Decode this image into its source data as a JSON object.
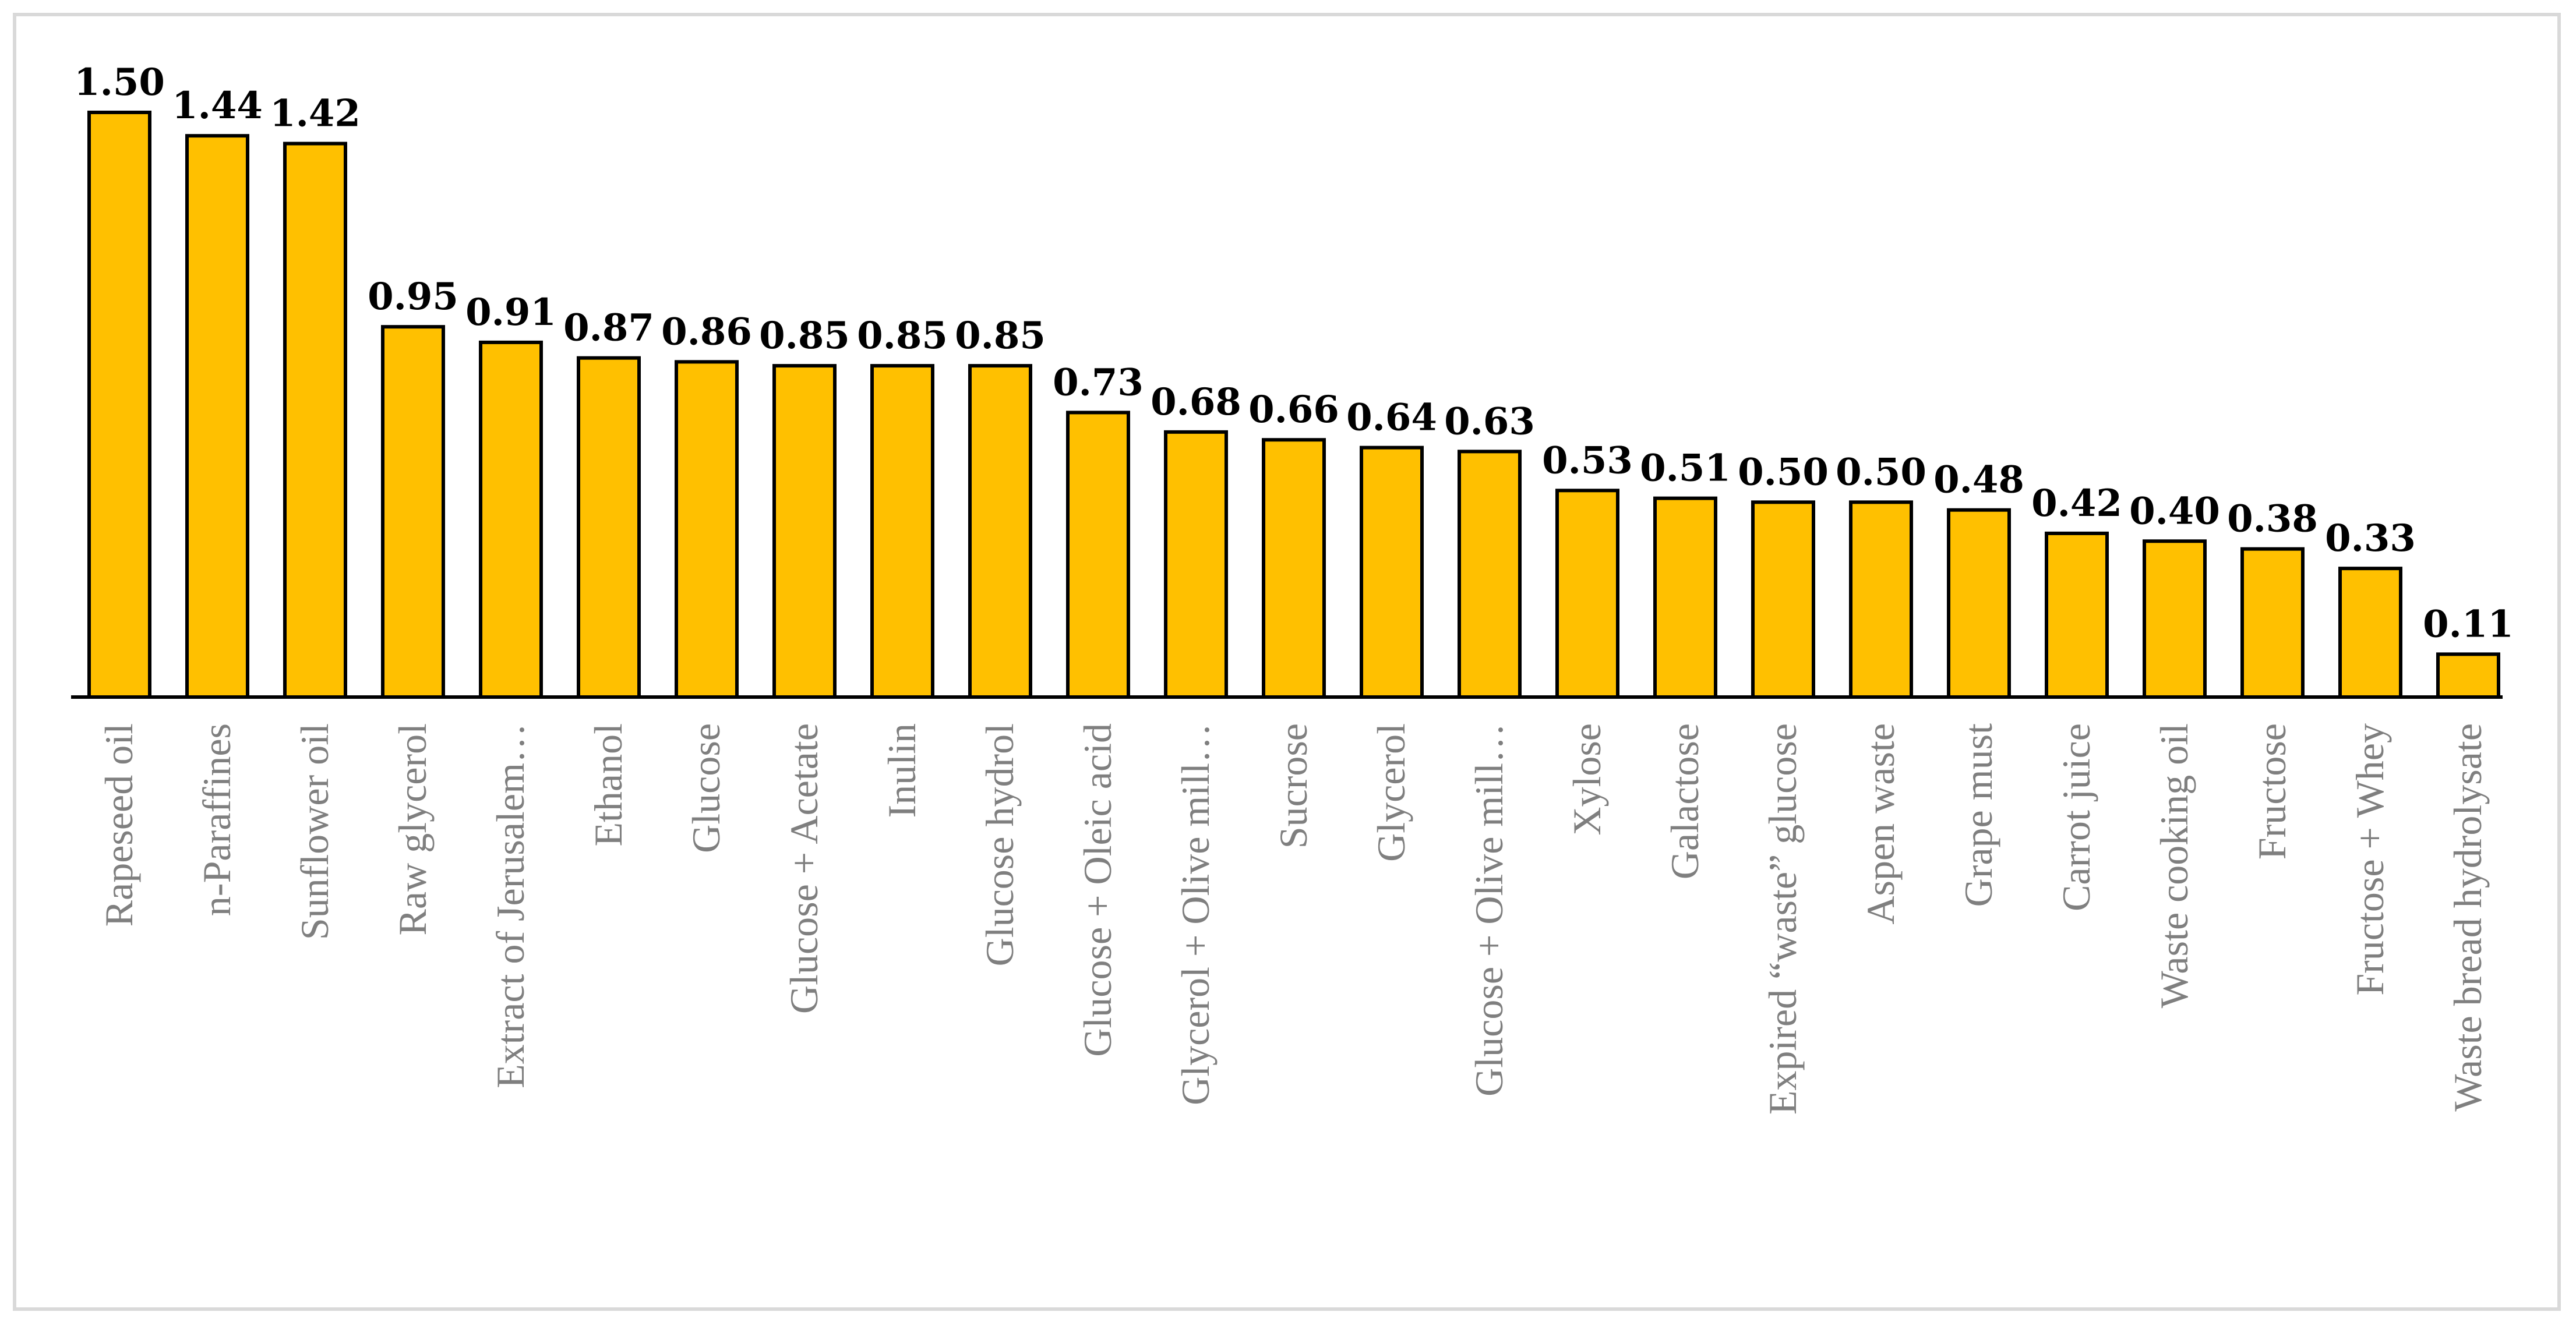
{
  "chart_data": {
    "type": "bar",
    "title": "",
    "xlabel": "",
    "ylabel": "",
    "ylim": [
      0,
      1.6
    ],
    "grid": false,
    "legend": "none",
    "bar_color": "#FFC000",
    "bar_edge_color": "#000000",
    "label_color": "#7F7F7F",
    "categories": [
      "Rapeseed oil",
      "n-Paraffines",
      "Sunflower oil",
      "Raw glycerol",
      "Extract of Jerusalem…",
      "Ethanol",
      "Glucose",
      "Glucose + Acetate",
      "Inulin",
      "Glucose hydrol",
      "Glucose + Oleic acid",
      "Glycerol + Olive mill…",
      "Sucrose",
      "Glycerol",
      "Glucose + Olive mill…",
      "Xylose",
      "Galactose",
      "Expired “waste” glucose",
      "Aspen waste",
      "Grape must",
      "Carrot juice",
      "Waste cooking oil",
      "Fructose",
      "Fructose + Whey",
      "Waste bread hydrolysate"
    ],
    "values": [
      1.5,
      1.44,
      1.42,
      0.95,
      0.91,
      0.87,
      0.86,
      0.85,
      0.85,
      0.85,
      0.73,
      0.68,
      0.66,
      0.64,
      0.63,
      0.53,
      0.51,
      0.5,
      0.5,
      0.48,
      0.42,
      0.4,
      0.38,
      0.33,
      0.11
    ],
    "value_labels": [
      "1.50",
      "1.44",
      "1.42",
      "0.95",
      "0.91",
      "0.87",
      "0.86",
      "0.85",
      "0.85",
      "0.85",
      "0.73",
      "0.68",
      "0.66",
      "0.64",
      "0.63",
      "0.53",
      "0.51",
      "0.50",
      "0.50",
      "0.48",
      "0.42",
      "0.40",
      "0.38",
      "0.33",
      "0.11"
    ]
  }
}
